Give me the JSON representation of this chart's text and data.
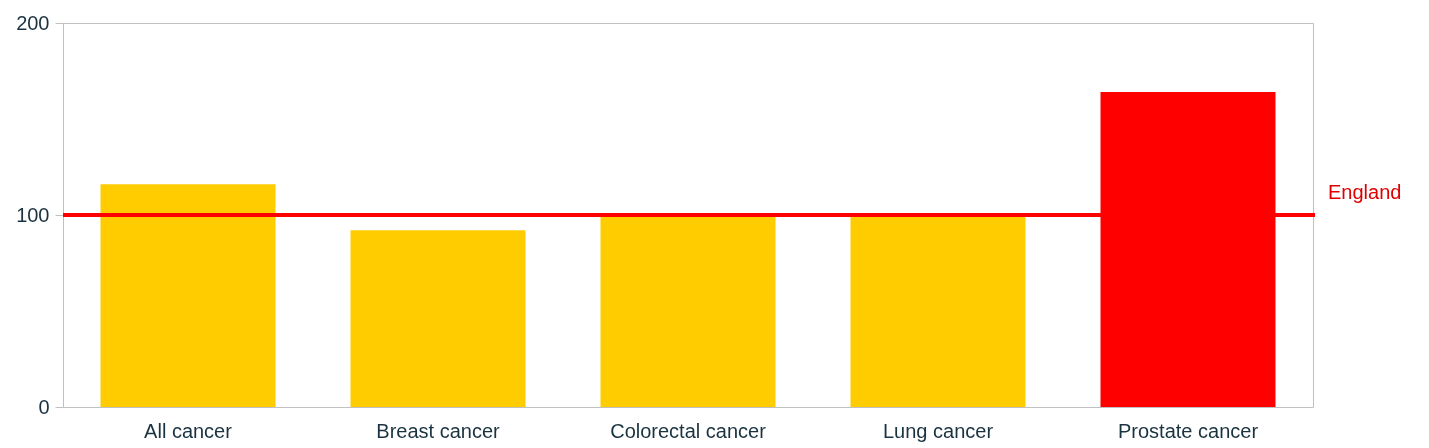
{
  "chart_data": {
    "type": "bar",
    "categories": [
      "All cancer",
      "Breast cancer",
      "Colorectal cancer",
      "Lung cancer",
      "Prostate cancer"
    ],
    "values": [
      116,
      92,
      99,
      99,
      164
    ],
    "colors": [
      "#ffcc00",
      "#ffcc00",
      "#ffcc00",
      "#ffcc00",
      "#ff0000"
    ],
    "ylim": [
      0,
      200
    ],
    "yticks": [
      0,
      100,
      200
    ],
    "grid": false,
    "legend": false,
    "ref_lines": [
      {
        "axis": "y",
        "value": 100,
        "label": "England",
        "color": "#ff0000",
        "line_style": "solid"
      }
    ]
  }
}
